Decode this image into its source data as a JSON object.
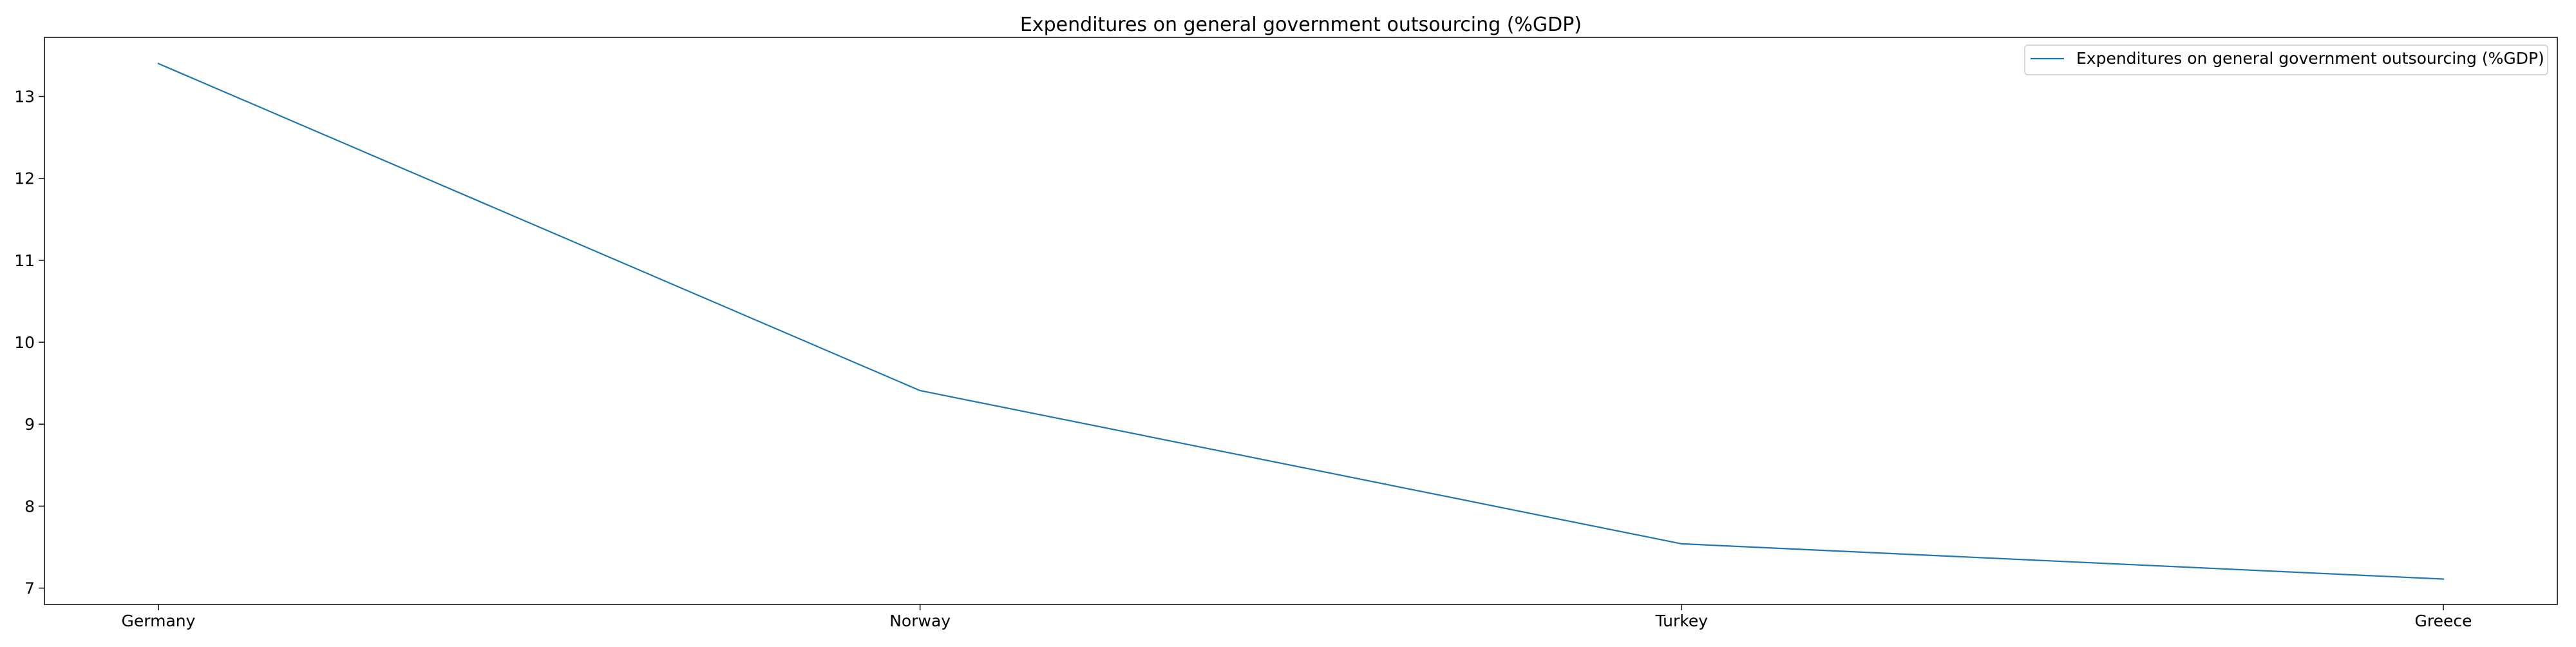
{
  "chart_data": {
    "type": "line",
    "title": "Expenditures on general government outsourcing (%GDP)",
    "xlabel": "",
    "ylabel": "",
    "categories": [
      "Germany",
      "Norway",
      "Turkey",
      "Greece"
    ],
    "series": [
      {
        "name": "Expenditures on general government outsourcing (%GDP)",
        "values": [
          13.4,
          9.41,
          7.54,
          7.11
        ],
        "color": "#1f77b4"
      }
    ],
    "yticks": [
      7,
      8,
      9,
      10,
      11,
      12,
      13
    ],
    "ylim": [
      6.8,
      13.72
    ],
    "grid": false,
    "legend": "upper right"
  }
}
